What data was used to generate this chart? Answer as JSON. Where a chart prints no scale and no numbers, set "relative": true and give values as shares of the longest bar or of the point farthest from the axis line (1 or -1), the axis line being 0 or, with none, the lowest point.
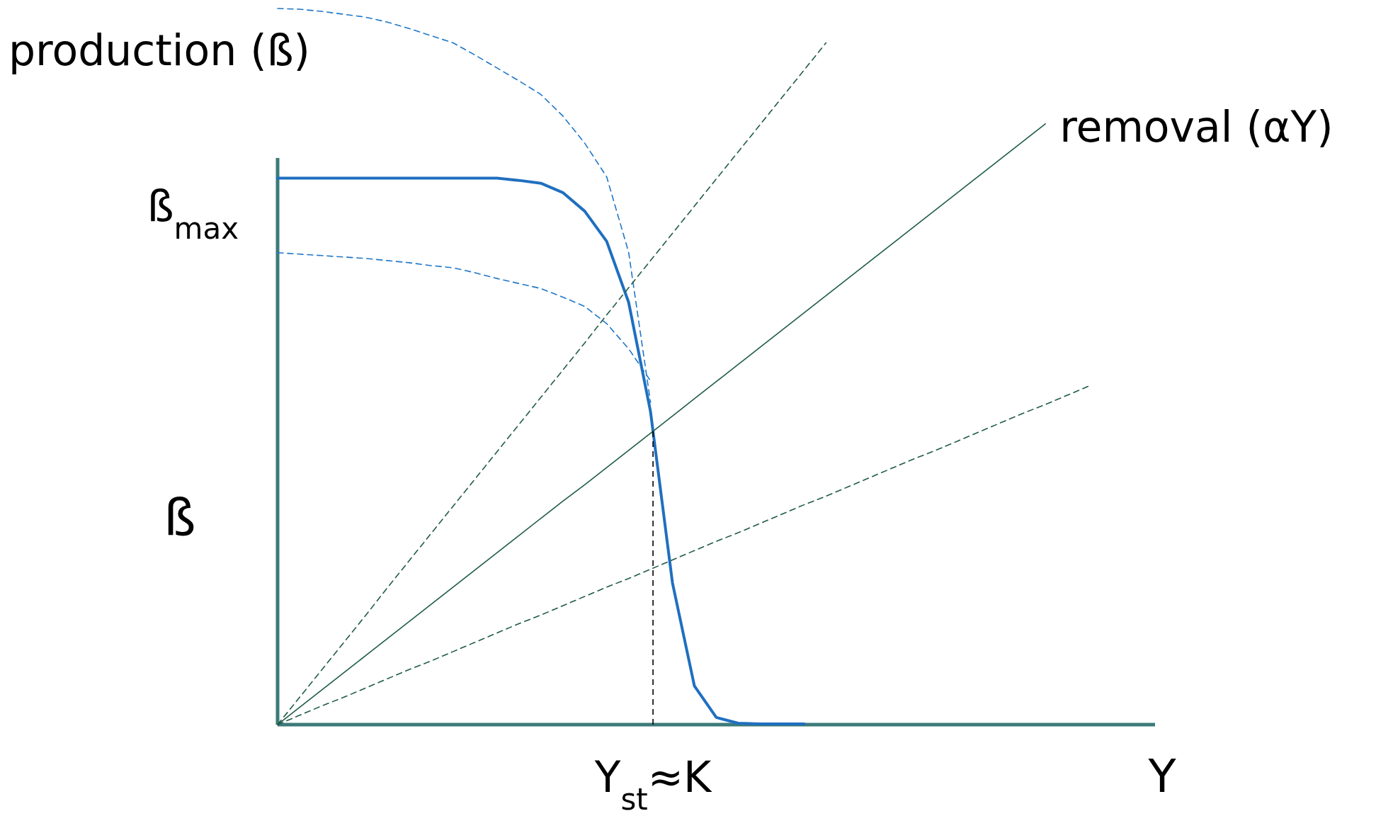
{
  "chart_data": {
    "type": "line",
    "relative": true,
    "xlabel": "Y",
    "ylabel": "ß",
    "marker": "none",
    "categories": [
      null,
      null,
      null,
      null,
      null,
      null,
      null,
      null,
      null,
      null,
      null,
      null,
      null,
      null,
      null,
      null,
      null,
      null,
      null,
      null,
      null,
      null,
      null,
      null,
      null,
      null,
      null,
      null,
      null,
      null,
      null,
      null,
      null,
      null,
      null,
      null,
      null,
      null,
      null,
      null,
      null
    ],
    "annotations": [
      "production (ß)",
      "removal (αY)",
      "ß$_{max}$",
      "Y$_{st}$≈K"
    ],
    "series": [
      {
        "color": "#1f6fbf",
        "line_style": "solid",
        "values": [
          0.763,
          0.763,
          0.763,
          0.763,
          0.763,
          0.763,
          0.763,
          0.763,
          0.763,
          0.763,
          0.763,
          0.76,
          0.756,
          0.743,
          0.717,
          0.675,
          0.59,
          0.437,
          0.198,
          0.054,
          0.01,
          0.002,
          0.001,
          0.001,
          0.001,
          null,
          null,
          null,
          null,
          null,
          null,
          null,
          null,
          null,
          null,
          null,
          null,
          null,
          null,
          null,
          null
        ]
      },
      {
        "color": "#1f77c8",
        "line_style": "dashed",
        "values": [
          1,
          0.999,
          0.996,
          0.992,
          0.988,
          0.981,
          0.972,
          0.962,
          0.952,
          0.935,
          0.917,
          0.899,
          0.88,
          0.85,
          0.812,
          0.765,
          0.66,
          0.45,
          null,
          null,
          null,
          null,
          null,
          null,
          null,
          null,
          null,
          null,
          null,
          null,
          null,
          null,
          null,
          null,
          null,
          null,
          null,
          null,
          null,
          null,
          null
        ]
      },
      {
        "color": "#1f77c8",
        "line_style": "dashed",
        "values": [
          0.659,
          0.657,
          0.655,
          0.653,
          0.651,
          0.648,
          0.645,
          0.641,
          0.638,
          0.631,
          0.623,
          0.616,
          0.609,
          0.597,
          0.584,
          0.56,
          0.525,
          0.48,
          null,
          null,
          null,
          null,
          null,
          null,
          null,
          null,
          null,
          null,
          null,
          null,
          null,
          null,
          null,
          null,
          null,
          null,
          null,
          null,
          null,
          null,
          null
        ]
      },
      {
        "color": "#1f5c45",
        "line_style": "solid",
        "values": [
          0,
          0.024,
          0.048,
          0.072,
          0.096,
          0.12,
          0.144,
          0.168,
          0.192,
          0.216,
          0.24,
          0.264,
          0.288,
          0.312,
          0.335,
          0.359,
          0.383,
          0.407,
          0.431,
          0.455,
          0.479,
          0.503,
          0.527,
          0.551,
          0.575,
          0.599,
          0.623,
          0.647,
          0.671,
          0.695,
          0.719,
          0.743,
          0.767,
          0.791,
          0.815,
          0.839,
          null,
          null,
          null,
          null,
          null
        ]
      },
      {
        "color": "#1f5c45",
        "line_style": "dashed",
        "values": [
          0,
          0.038,
          0.076,
          0.114,
          0.152,
          0.191,
          0.229,
          0.267,
          0.305,
          0.343,
          0.381,
          0.419,
          0.457,
          0.495,
          0.533,
          0.572,
          0.61,
          0.648,
          0.686,
          0.724,
          0.762,
          0.8,
          0.838,
          0.876,
          0.914,
          0.952,
          null,
          null,
          null,
          null,
          null,
          null,
          null,
          null,
          null,
          null,
          null,
          null,
          null,
          null,
          null
        ]
      },
      {
        "color": "#1f5c45",
        "line_style": "dashed",
        "values": [
          0,
          0.013,
          0.026,
          0.038,
          0.051,
          0.064,
          0.077,
          0.089,
          0.102,
          0.115,
          0.128,
          0.141,
          0.153,
          0.166,
          0.179,
          0.192,
          0.204,
          0.217,
          0.23,
          0.243,
          0.256,
          0.268,
          0.281,
          0.294,
          0.307,
          0.319,
          0.332,
          0.345,
          0.358,
          0.371,
          0.383,
          0.396,
          0.409,
          0.422,
          0.435,
          0.447,
          0.46,
          0.473,
          null,
          null,
          null
        ]
      }
    ]
  }
}
